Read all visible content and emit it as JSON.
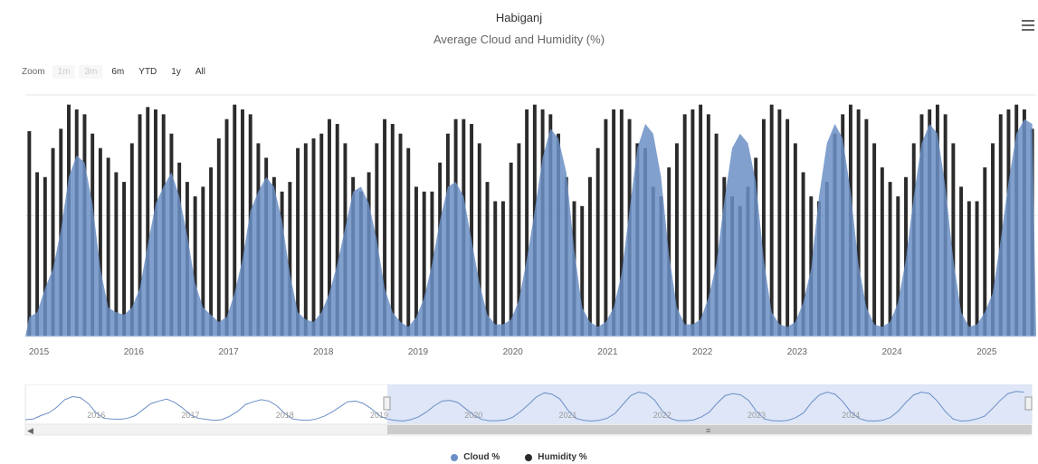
{
  "header": {
    "title": "Habiganj",
    "subtitle": "Average Cloud and Humidity (%)"
  },
  "zoom": {
    "label": "Zoom",
    "buttons": [
      "1m",
      "3m",
      "6m",
      "YTD",
      "1y",
      "All"
    ],
    "disabled": [
      "1m",
      "3m"
    ]
  },
  "icons": {
    "menu": "hamburger-menu-icon"
  },
  "colors": {
    "cloud": "#6b8fc6",
    "humidity": "#2b2b2b",
    "navigator_mask": "#d6e0f5"
  },
  "chart_data": {
    "type": "bar",
    "x_ticks": [
      "2015",
      "2016",
      "2017",
      "2018",
      "2019",
      "2020",
      "2021",
      "2022",
      "2023",
      "2024",
      "2025"
    ],
    "navigator_ticks": [
      "2016",
      "2017",
      "2018",
      "2019",
      "2020",
      "2021",
      "2022",
      "2023",
      "2024"
    ],
    "grid": true,
    "legend_position": "bottom-center",
    "ylim": [
      0,
      100
    ],
    "series": [
      {
        "name": "Cloud %",
        "values": [
          8,
          10,
          20,
          28,
          44,
          66,
          75,
          72,
          55,
          28,
          12,
          10,
          9,
          12,
          20,
          38,
          55,
          62,
          68,
          58,
          42,
          22,
          12,
          9,
          6,
          8,
          18,
          32,
          52,
          60,
          66,
          62,
          48,
          26,
          10,
          7,
          6,
          10,
          18,
          30,
          45,
          60,
          62,
          55,
          40,
          20,
          10,
          6,
          4,
          8,
          16,
          30,
          48,
          62,
          64,
          58,
          40,
          22,
          9,
          5,
          5,
          7,
          15,
          32,
          52,
          74,
          86,
          82,
          68,
          36,
          12,
          6,
          4,
          6,
          12,
          26,
          52,
          78,
          88,
          84,
          66,
          34,
          12,
          5,
          5,
          7,
          16,
          30,
          56,
          78,
          84,
          80,
          64,
          32,
          10,
          5,
          4,
          6,
          14,
          28,
          58,
          80,
          88,
          82,
          60,
          30,
          12,
          5,
          4,
          6,
          14,
          32,
          58,
          80,
          88,
          84,
          62,
          32,
          10,
          4,
          5,
          10,
          18,
          40,
          64,
          84,
          90,
          88
        ]
      },
      {
        "name": "Humidity %",
        "values": [
          85,
          68,
          66,
          78,
          86,
          96,
          94,
          92,
          84,
          78,
          74,
          68,
          64,
          80,
          92,
          95,
          94,
          92,
          84,
          72,
          64,
          58,
          62,
          70,
          82,
          90,
          96,
          94,
          92,
          80,
          74,
          66,
          60,
          64,
          78,
          80,
          82,
          84,
          90,
          88,
          80,
          66,
          60,
          68,
          80,
          90,
          88,
          84,
          78,
          62,
          60,
          60,
          72,
          84,
          90,
          90,
          88,
          80,
          64,
          56,
          56,
          72,
          80,
          94,
          96,
          94,
          92,
          84,
          66,
          56,
          54,
          66,
          78,
          90,
          94,
          94,
          90,
          80,
          78,
          62,
          58,
          70,
          80,
          92,
          94,
          96,
          92,
          84,
          66,
          58,
          54,
          62,
          74,
          90,
          96,
          94,
          90,
          80,
          68,
          58,
          56,
          64,
          84,
          92,
          96,
          94,
          90,
          80,
          70,
          64,
          58,
          66,
          80,
          92,
          94,
          96,
          92,
          80,
          62,
          56,
          56,
          70,
          80,
          92,
          94,
          96,
          94,
          86
        ]
      }
    ]
  },
  "navigator": {
    "cloud_values": [
      8,
      10,
      20,
      28,
      44,
      66,
      75,
      72,
      55,
      28,
      12,
      10,
      9,
      12,
      20,
      38,
      55,
      62,
      68,
      58,
      42,
      22,
      12,
      9,
      6,
      8,
      18,
      32,
      52,
      60,
      66,
      62,
      48,
      26,
      10,
      7,
      6,
      10,
      18,
      30,
      45,
      60,
      62,
      55,
      40,
      20,
      10,
      6,
      4,
      8,
      16,
      30,
      48,
      62,
      64,
      58,
      40,
      22,
      9,
      5,
      5,
      7,
      15,
      32,
      52,
      74,
      86,
      82,
      68,
      36,
      12,
      6,
      4,
      6,
      12,
      26,
      52,
      78,
      88,
      84,
      66,
      34,
      12,
      5,
      5,
      7,
      16,
      30,
      56,
      78,
      84,
      80,
      64,
      32,
      10,
      5,
      4,
      6,
      14,
      28,
      58,
      80,
      88,
      82,
      60,
      30,
      12,
      5,
      4,
      6,
      14,
      32,
      58,
      80,
      88,
      84,
      62,
      32,
      10,
      4,
      5,
      10,
      18,
      40,
      64,
      84,
      90,
      88
    ]
  }
}
